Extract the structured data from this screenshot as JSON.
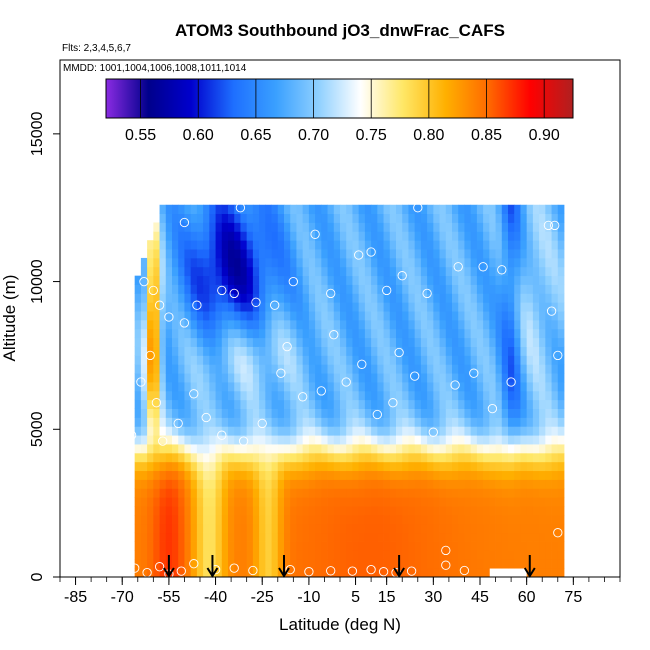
{
  "chart_data": {
    "type": "heatmap",
    "title": "ATOM3 Southbound jO3_dnwFrac_CAFS",
    "subtitle_flights": "Flts: 2,3,4,5,6,7",
    "subtitle_dates": "MMDD: 1001,1004,1006,1008,1011,1014",
    "xlabel": "Latitude (deg N)",
    "ylabel": "Altitude (m)",
    "xlim": [
      -90,
      90
    ],
    "ylim": [
      0,
      17500
    ],
    "x_ticks": [
      -85,
      -70,
      -55,
      -40,
      -25,
      -10,
      5,
      15,
      30,
      45,
      60,
      75
    ],
    "x_tick_labels": [
      "-85",
      "-70",
      "-55",
      "-40",
      "-25",
      "-10",
      "5",
      "15",
      "30",
      "45",
      "60",
      "75"
    ],
    "y_ticks": [
      0,
      5000,
      10000,
      15000
    ],
    "y_tick_labels": [
      "0",
      "5000",
      "10000",
      "15000"
    ],
    "colorbar": {
      "min": 0.52,
      "max": 0.925,
      "ticks": [
        0.55,
        0.6,
        0.65,
        0.7,
        0.75,
        0.8,
        0.85,
        0.9
      ],
      "tick_labels": [
        "0.55",
        "0.60",
        "0.65",
        "0.70",
        "0.75",
        "0.80",
        "0.85",
        "0.90"
      ],
      "palette": [
        "#8a2be2",
        "#00008b",
        "#0000cd",
        "#1e6fff",
        "#3aa0ff",
        "#8fd0ff",
        "#ffffff",
        "#ffe766",
        "#ffb000",
        "#ff6a00",
        "#ff0000",
        "#b02020"
      ]
    },
    "profile_latitudes": [
      -55,
      -41,
      -18,
      19,
      61
    ],
    "field_description": "curtain of jO3 downward fraction vs latitude and altitude; values ~0.78-0.88 below 4 km, ~0.62-0.72 aloft, minima ~0.52-0.58 near -35 deg at 9-11 km",
    "observations": [
      [
        -66,
        300
      ],
      [
        -62,
        150
      ],
      [
        -58,
        350
      ],
      [
        -55,
        100
      ],
      [
        -51,
        200
      ],
      [
        -47,
        450
      ],
      [
        -40,
        250
      ],
      [
        -34,
        300
      ],
      [
        -28,
        220
      ],
      [
        -16,
        250
      ],
      [
        -10,
        180
      ],
      [
        -3,
        210
      ],
      [
        4,
        200
      ],
      [
        10,
        250
      ],
      [
        14,
        180
      ],
      [
        18,
        150
      ],
      [
        23,
        200
      ],
      [
        34,
        900
      ],
      [
        34,
        400
      ],
      [
        40,
        220
      ],
      [
        -67,
        4800
      ],
      [
        -64,
        6600
      ],
      [
        -61,
        7500
      ],
      [
        -59,
        5900
      ],
      [
        -57,
        4600
      ],
      [
        -52,
        5200
      ],
      [
        -47,
        6200
      ],
      [
        -43,
        5400
      ],
      [
        -38,
        4800
      ],
      [
        -31,
        4600
      ],
      [
        -25,
        5200
      ],
      [
        -19,
        6900
      ],
      [
        -12,
        6100
      ],
      [
        -6,
        6300
      ],
      [
        2,
        6600
      ],
      [
        7,
        7200
      ],
      [
        12,
        5500
      ],
      [
        17,
        5900
      ],
      [
        24,
        6800
      ],
      [
        30,
        4900
      ],
      [
        37,
        6500
      ],
      [
        43,
        6900
      ],
      [
        49,
        5700
      ],
      [
        55,
        6600
      ],
      [
        -63,
        10000
      ],
      [
        -60,
        9700
      ],
      [
        -58,
        9200
      ],
      [
        -55,
        8800
      ],
      [
        -50,
        8600
      ],
      [
        -46,
        9200
      ],
      [
        -38,
        9700
      ],
      [
        -34,
        9600
      ],
      [
        -27,
        9300
      ],
      [
        -21,
        9200
      ],
      [
        -15,
        10000
      ],
      [
        -8,
        11600
      ],
      [
        -3,
        9600
      ],
      [
        6,
        10900
      ],
      [
        10,
        11000
      ],
      [
        15,
        9700
      ],
      [
        20,
        10200
      ],
      [
        28,
        9600
      ],
      [
        38,
        10500
      ],
      [
        46,
        10500
      ],
      [
        52,
        10400
      ],
      [
        -17,
        7800
      ],
      [
        -2,
        8200
      ],
      [
        19,
        7600
      ],
      [
        -50,
        12000
      ],
      [
        -61,
        12200
      ],
      [
        67,
        11900
      ],
      [
        69,
        11900
      ],
      [
        68,
        9000
      ],
      [
        70,
        7500
      ],
      [
        70,
        1500
      ],
      [
        25,
        12500
      ],
      [
        -32,
        12500
      ]
    ]
  }
}
